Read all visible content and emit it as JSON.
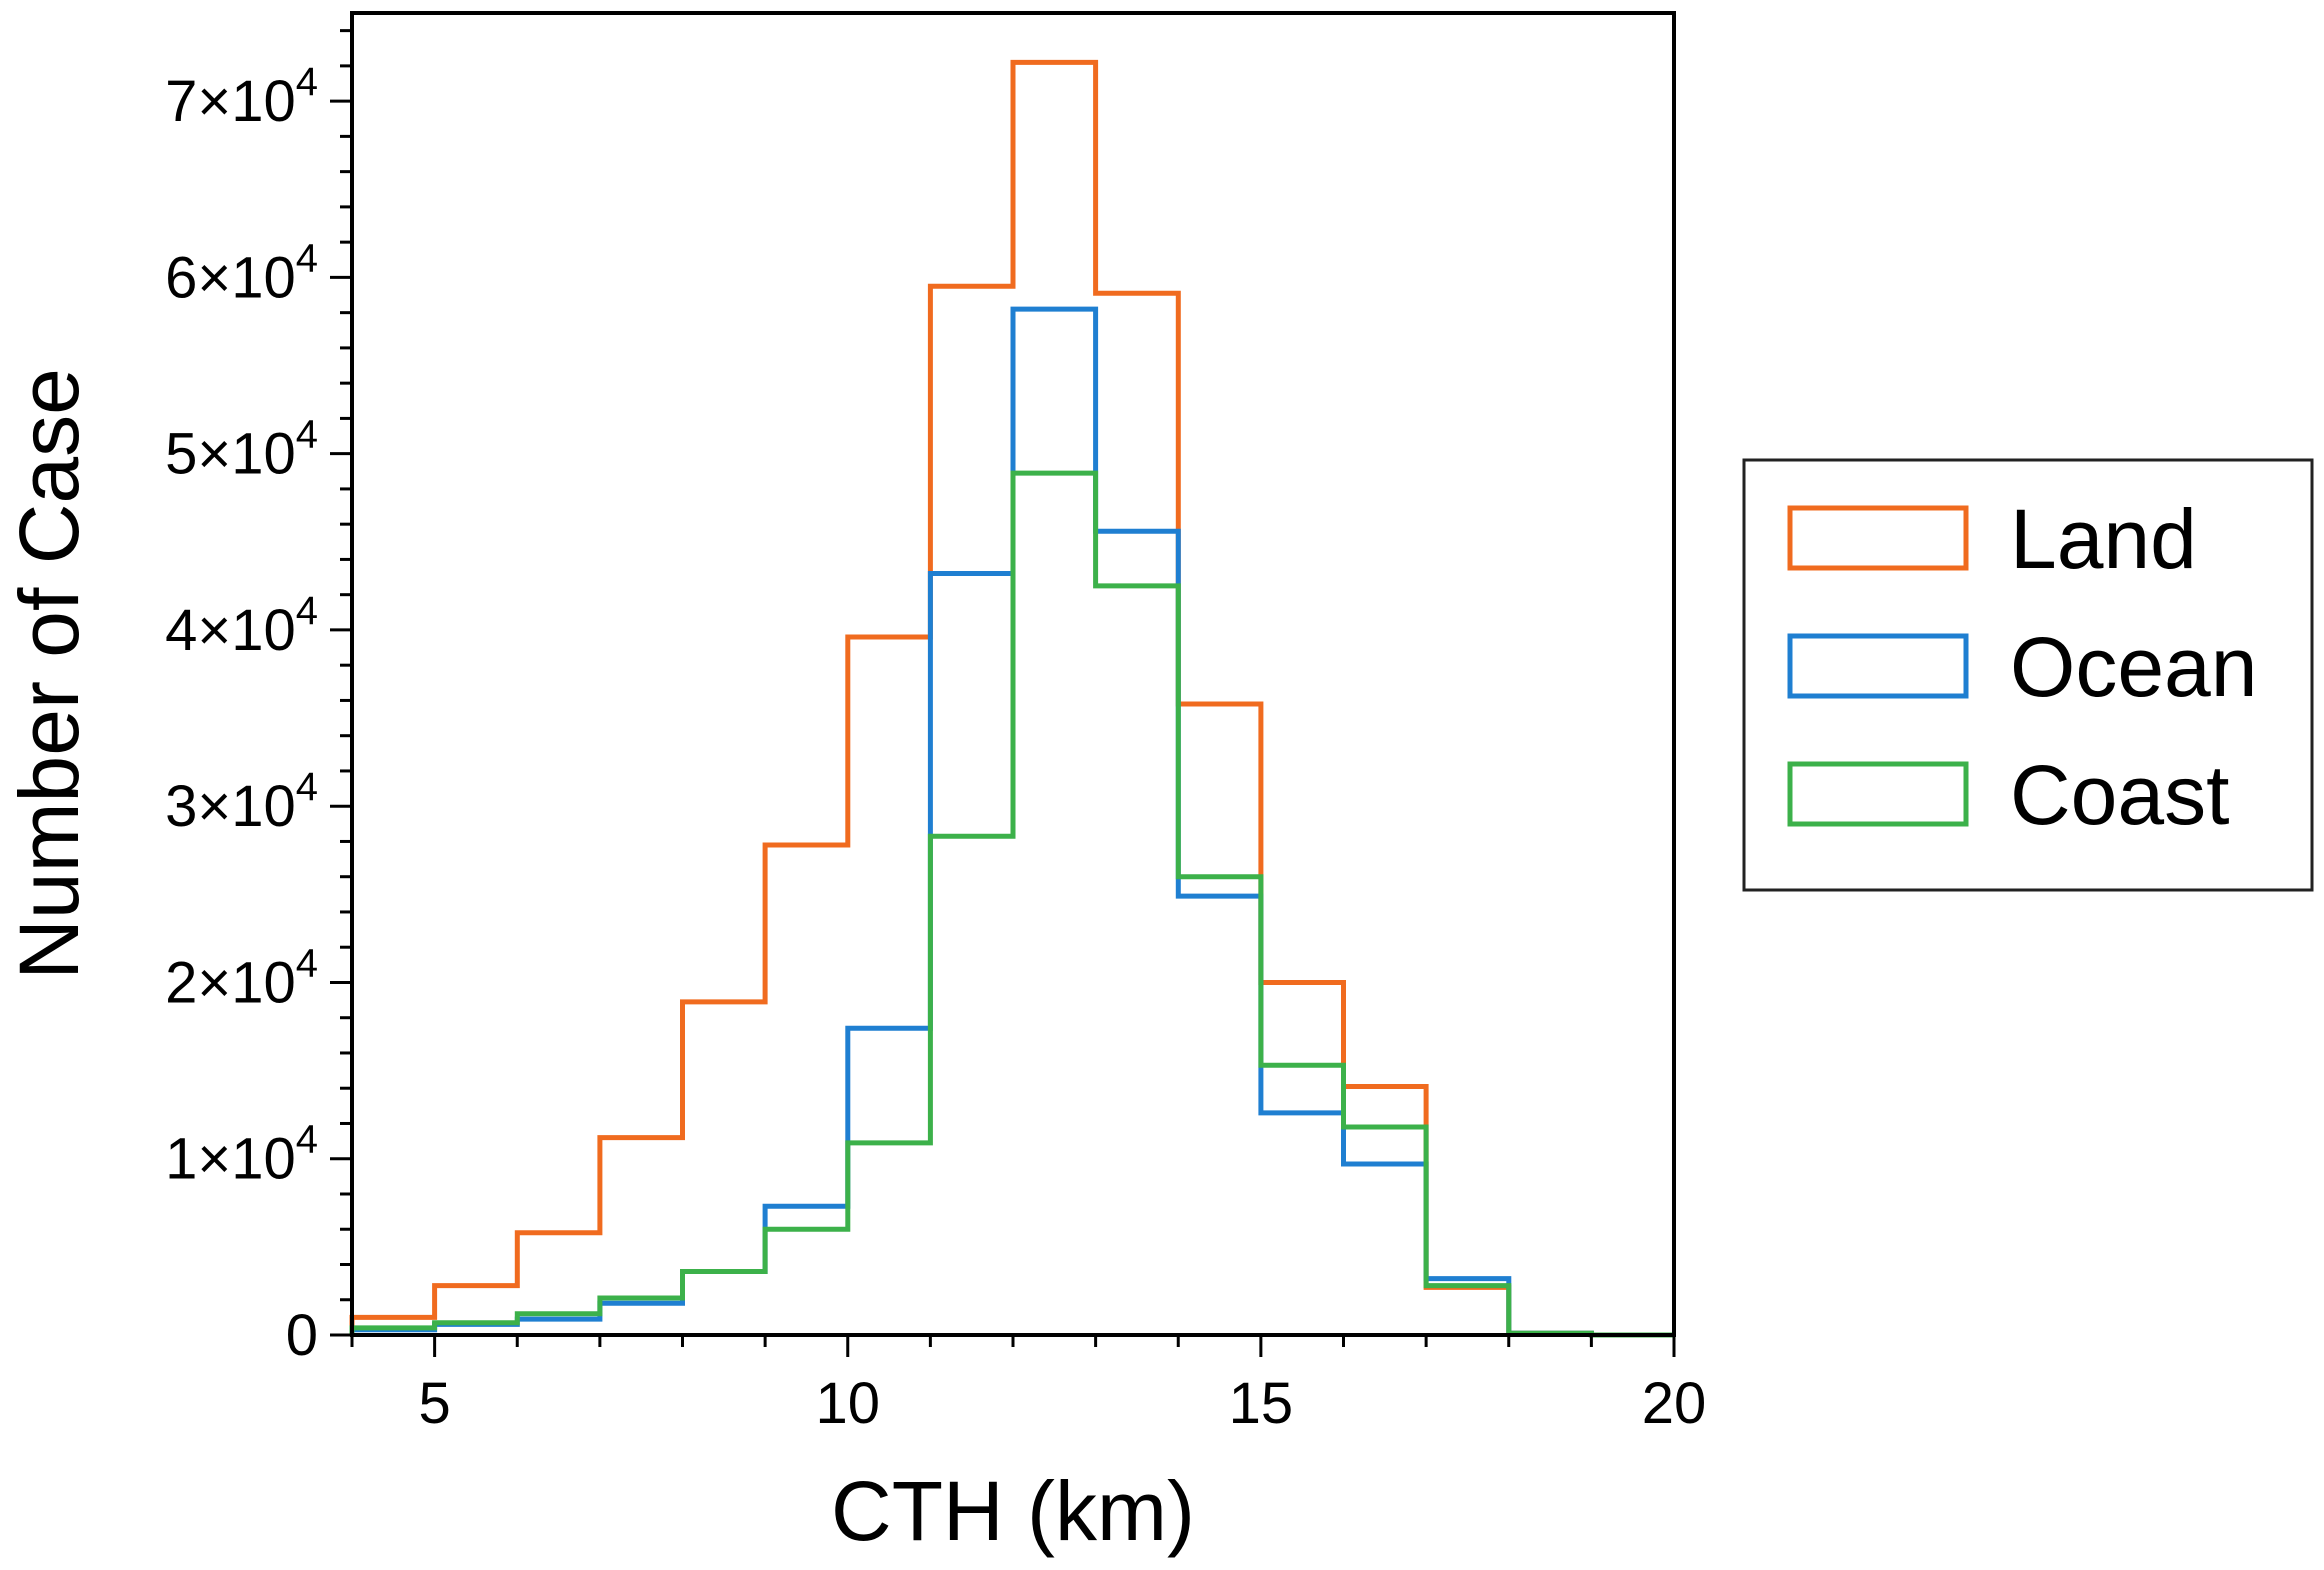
{
  "chart_data": {
    "type": "histogram-step",
    "title": "",
    "xlabel": "CTH (km)",
    "ylabel": "Number of Case",
    "xlim": [
      4,
      20
    ],
    "ylim": [
      0,
      75000
    ],
    "x_ticks": [
      {
        "value": 5,
        "label": "5"
      },
      {
        "value": 10,
        "label": "10"
      },
      {
        "value": 15,
        "label": "15"
      },
      {
        "value": 20,
        "label": "20"
      }
    ],
    "y_ticks": [
      {
        "value": 0,
        "label": "0",
        "mantissa": "",
        "exponent": ""
      },
      {
        "value": 10000,
        "label": "1×10^4",
        "mantissa": "1×10",
        "exponent": "4"
      },
      {
        "value": 20000,
        "label": "2×10^4",
        "mantissa": "2×10",
        "exponent": "4"
      },
      {
        "value": 30000,
        "label": "3×10^4",
        "mantissa": "3×10",
        "exponent": "4"
      },
      {
        "value": 40000,
        "label": "4×10^4",
        "mantissa": "4×10",
        "exponent": "4"
      },
      {
        "value": 50000,
        "label": "5×10^4",
        "mantissa": "5×10",
        "exponent": "4"
      },
      {
        "value": 60000,
        "label": "6×10^4",
        "mantissa": "6×10",
        "exponent": "4"
      },
      {
        "value": 70000,
        "label": "7×10^4",
        "mantissa": "7×10",
        "exponent": "4"
      }
    ],
    "bin_edges": [
      4,
      5,
      6,
      7,
      8,
      9,
      10,
      11,
      12,
      13,
      14,
      15,
      16,
      17,
      18,
      19,
      20
    ],
    "series": [
      {
        "name": "Land",
        "color": "#f06b1f",
        "values": [
          1000,
          2800,
          5800,
          11200,
          18900,
          27800,
          39600,
          59500,
          72200,
          59100,
          35800,
          20000,
          14100,
          2700,
          100,
          0
        ]
      },
      {
        "name": "Ocean",
        "color": "#1f7fd1",
        "values": [
          300,
          600,
          900,
          1800,
          3600,
          7300,
          17400,
          43200,
          58200,
          45600,
          24900,
          12600,
          9700,
          3200,
          100,
          0
        ]
      },
      {
        "name": "Coast",
        "color": "#3cb14a",
        "values": [
          400,
          700,
          1200,
          2100,
          3600,
          6000,
          10900,
          28300,
          48900,
          42500,
          26000,
          15300,
          11800,
          2800,
          100,
          0
        ]
      }
    ],
    "legend": {
      "placement": "outside-right",
      "entries": [
        "Land",
        "Ocean",
        "Coast"
      ]
    }
  }
}
